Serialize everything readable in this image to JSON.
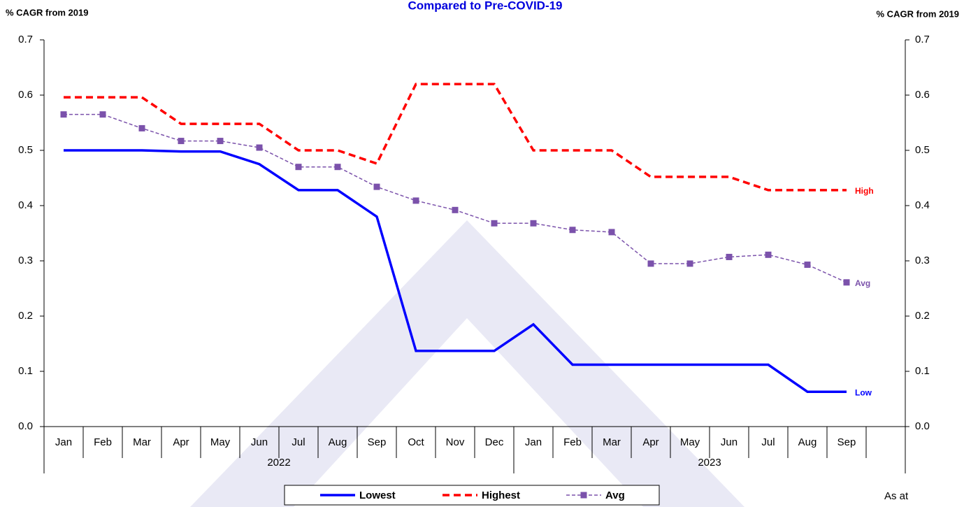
{
  "chart_data": {
    "type": "line",
    "title": "Compared to Pre-COVID-19",
    "y_label": "% CAGR from 2019",
    "y2_label": "% CAGR from 2019",
    "note": "As at",
    "categories": [
      "Jan",
      "Feb",
      "Mar",
      "Apr",
      "May",
      "Jun",
      "Jul",
      "Aug",
      "Sep",
      "Oct",
      "Nov",
      "Dec",
      "Jan",
      "Feb",
      "Mar",
      "Apr",
      "May",
      "Jun",
      "Jul",
      "Aug",
      "Sep",
      null
    ],
    "year_groups": [
      {
        "label": "2022",
        "count": 12
      },
      {
        "label": "2023",
        "count": 10
      }
    ],
    "ylim": [
      0,
      0.7
    ],
    "yticks": [
      {
        "value": 0,
        "label": "0.0"
      },
      0.1,
      0.2,
      0.3,
      0.4,
      0.5,
      0.6,
      0.7
    ],
    "y2lim": [
      0,
      0.7
    ],
    "y2ticks": [
      {
        "value": 0,
        "label": "0.0"
      },
      0.1,
      0.2,
      0.3,
      0.4,
      0.5,
      0.6,
      0.7
    ],
    "legend": "bottom",
    "series": [
      {
        "name": "Lowest",
        "end_label": "Low",
        "color": "#0000ff",
        "dash": "solid",
        "marker": "none",
        "values": [
          0.5,
          0.5,
          0.5,
          0.498,
          0.498,
          0.475,
          0.428,
          0.428,
          0.38,
          0.137,
          0.137,
          0.137,
          0.185,
          0.112,
          0.112,
          0.112,
          0.112,
          0.112,
          0.112,
          0.063,
          0.063,
          null
        ]
      },
      {
        "name": "Highest",
        "end_label": "High",
        "color": "#ff0000",
        "dash": "dashed",
        "marker": "none",
        "values": [
          0.596,
          0.596,
          0.596,
          0.548,
          0.548,
          0.548,
          0.5,
          0.5,
          0.476,
          0.62,
          0.62,
          0.62,
          0.5,
          0.5,
          0.5,
          0.452,
          0.452,
          0.452,
          0.428,
          0.428,
          0.428,
          null
        ]
      },
      {
        "name": "Avg",
        "end_label": "Avg",
        "color": "#7b52ab",
        "dash": "dashed",
        "marker": "square",
        "values": [
          0.565,
          0.565,
          0.54,
          0.517,
          0.517,
          0.505,
          0.47,
          0.47,
          0.434,
          0.409,
          0.392,
          0.368,
          0.368,
          0.356,
          0.352,
          0.295,
          0.295,
          0.307,
          0.311,
          0.293,
          0.261,
          null
        ]
      }
    ]
  }
}
